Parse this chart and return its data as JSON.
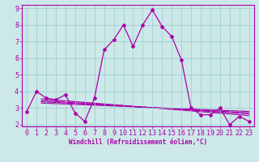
{
  "x": [
    0,
    1,
    2,
    3,
    4,
    5,
    6,
    7,
    8,
    9,
    10,
    11,
    12,
    13,
    14,
    15,
    16,
    17,
    18,
    19,
    20,
    21,
    22,
    23
  ],
  "y_main": [
    2.8,
    4.0,
    3.6,
    3.5,
    3.8,
    2.7,
    2.2,
    3.6,
    6.5,
    7.1,
    8.0,
    6.7,
    8.0,
    8.9,
    7.9,
    7.3,
    5.9,
    3.0,
    2.6,
    2.6,
    3.0,
    2.0,
    2.5,
    2.2
  ],
  "trend_lines": [
    {
      "x0": 1.5,
      "y0": 3.55,
      "x1": 23,
      "y1": 2.55
    },
    {
      "x0": 1.5,
      "y0": 3.45,
      "x1": 23,
      "y1": 2.65
    },
    {
      "x0": 1.5,
      "y0": 3.38,
      "x1": 23,
      "y1": 2.72
    },
    {
      "x0": 1.5,
      "y0": 3.3,
      "x1": 23,
      "y1": 2.8
    }
  ],
  "bg_color": "#cce8e8",
  "line_color": "#aa00aa",
  "grid_color": "#99cccc",
  "xlabel": "Windchill (Refroidissement éolien,°C)",
  "ylim": [
    1.9,
    9.2
  ],
  "xlim": [
    -0.5,
    23.5
  ],
  "yticks": [
    2,
    3,
    4,
    5,
    6,
    7,
    8,
    9
  ],
  "xticks": [
    0,
    1,
    2,
    3,
    4,
    5,
    6,
    7,
    8,
    9,
    10,
    11,
    12,
    13,
    14,
    15,
    16,
    17,
    18,
    19,
    20,
    21,
    22,
    23
  ],
  "xlabel_fontsize": 5.5,
  "tick_fontsize": 6.0
}
